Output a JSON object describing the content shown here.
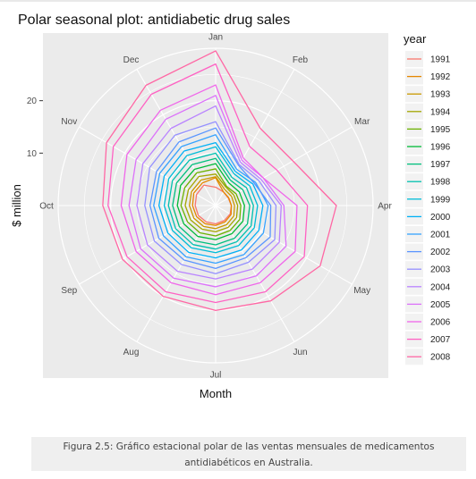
{
  "figure": {
    "caption": "Figura 2.5: Gráfico estacional polar de las ventas mensuales de medicamentos antidiabéticos en Australia."
  },
  "chart_data": {
    "type": "line",
    "coordinate_system": "polar",
    "title": "Polar seasonal plot: antidiabetic drug sales",
    "xlabel": "Month",
    "ylabel": "$ million",
    "categories": [
      "Jan",
      "Feb",
      "Mar",
      "Apr",
      "May",
      "Jun",
      "Jul",
      "Aug",
      "Sep",
      "Oct",
      "Nov",
      "Dec"
    ],
    "radial_ticks": [
      10,
      20
    ],
    "ylim": [
      0,
      30
    ],
    "legend": {
      "title": "year",
      "position": "right"
    },
    "grid": true,
    "series": [
      {
        "name": "1991",
        "color": "#F8766D",
        "values": [
          3.5,
          3.0,
          2.8,
          3.0,
          3.2,
          3.3,
          3.5,
          3.6,
          3.8,
          3.9,
          4.2,
          4.5
        ]
      },
      {
        "name": "1992",
        "color": "#E58700",
        "values": [
          5.3,
          3.0,
          2.9,
          3.0,
          3.4,
          3.6,
          3.8,
          4.0,
          4.2,
          4.4,
          4.8,
          5.0
        ]
      },
      {
        "name": "1993",
        "color": "#C99800",
        "values": [
          5.5,
          3.5,
          3.5,
          3.6,
          4.0,
          4.2,
          4.4,
          4.6,
          4.8,
          5.0,
          5.3,
          5.6
        ]
      },
      {
        "name": "1994",
        "color": "#A3A500",
        "values": [
          6.0,
          4.0,
          4.0,
          4.2,
          4.6,
          4.8,
          5.0,
          5.2,
          5.5,
          5.8,
          6.0,
          6.4
        ]
      },
      {
        "name": "1995",
        "color": "#6BB100",
        "values": [
          7.0,
          4.2,
          4.5,
          4.8,
          5.3,
          5.5,
          5.8,
          6.0,
          6.2,
          6.6,
          6.8,
          7.2
        ]
      },
      {
        "name": "1996",
        "color": "#00BA38",
        "values": [
          8.0,
          5.0,
          5.2,
          5.5,
          6.0,
          6.2,
          6.5,
          6.8,
          7.0,
          7.3,
          7.7,
          8.0
        ]
      },
      {
        "name": "1997",
        "color": "#00BF7D",
        "values": [
          9.0,
          5.6,
          6.0,
          6.5,
          7.0,
          7.2,
          7.5,
          7.8,
          8.0,
          8.2,
          8.6,
          9.0
        ]
      },
      {
        "name": "1998",
        "color": "#00C0AF",
        "values": [
          10.0,
          6.2,
          6.8,
          7.2,
          7.8,
          8.0,
          8.3,
          8.6,
          8.8,
          9.0,
          9.5,
          10.0
        ]
      },
      {
        "name": "1999",
        "color": "#00BCD8",
        "values": [
          11.2,
          7.0,
          7.5,
          8.0,
          8.5,
          8.8,
          9.0,
          9.3,
          9.5,
          9.8,
          10.3,
          11.0
        ]
      },
      {
        "name": "2000",
        "color": "#00B0F6",
        "values": [
          12.0,
          7.5,
          8.2,
          9.0,
          9.5,
          9.8,
          10.0,
          10.3,
          10.5,
          10.8,
          11.3,
          12.0
        ]
      },
      {
        "name": "2001",
        "color": "#35A2FF",
        "values": [
          13.5,
          8.0,
          8.8,
          10.0,
          10.5,
          10.8,
          11.0,
          11.3,
          11.5,
          11.8,
          12.3,
          13.0
        ]
      },
      {
        "name": "2002",
        "color": "#5A95FF",
        "values": [
          14.8,
          8.8,
          8.5,
          10.5,
          12.0,
          11.5,
          12.0,
          12.0,
          12.5,
          12.5,
          13.0,
          14.0
        ]
      },
      {
        "name": "2003",
        "color": "#9590FF",
        "values": [
          16.0,
          9.0,
          9.5,
          11.5,
          13.0,
          12.5,
          13.0,
          13.0,
          13.5,
          13.5,
          14.5,
          15.5
        ]
      },
      {
        "name": "2004",
        "color": "#B983FF",
        "values": [
          19.0,
          9.5,
          10.0,
          12.5,
          14.0,
          14.0,
          14.0,
          14.5,
          15.0,
          15.0,
          16.0,
          17.0
        ]
      },
      {
        "name": "2005",
        "color": "#DC71FA",
        "values": [
          21.0,
          10.0,
          10.5,
          13.0,
          15.5,
          15.5,
          15.5,
          16.0,
          16.5,
          16.5,
          17.5,
          19.0
        ]
      },
      {
        "name": "2006",
        "color": "#F066EA",
        "values": [
          23.0,
          10.5,
          10.5,
          15.5,
          17.5,
          17.0,
          17.0,
          17.0,
          17.5,
          18.0,
          19.5,
          21.0
        ]
      },
      {
        "name": "2007",
        "color": "#FF61C3",
        "values": [
          27.0,
          13.0,
          13.5,
          17.5,
          19.5,
          19.0,
          18.5,
          19.0,
          19.5,
          20.5,
          22.5,
          24.5
        ]
      },
      {
        "name": "2008",
        "color": "#FF67A4",
        "values": [
          29.5,
          17.0,
          17.0,
          23.0,
          23.0,
          21.0,
          20.0,
          20.0,
          20.5,
          21.5,
          24.0,
          26.5
        ]
      }
    ]
  }
}
